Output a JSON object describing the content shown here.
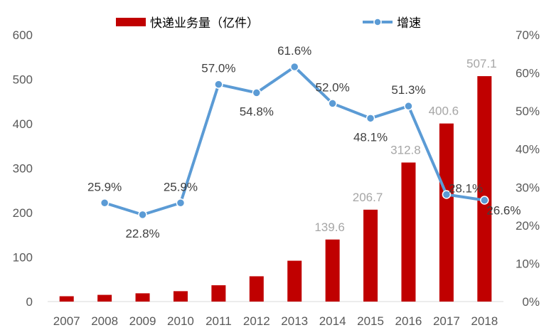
{
  "chart_data": {
    "type": "bar",
    "categories": [
      "2007",
      "2008",
      "2009",
      "2010",
      "2011",
      "2012",
      "2013",
      "2014",
      "2015",
      "2016",
      "2017",
      "2018"
    ],
    "series": [
      {
        "name": "快递业务量（亿件）",
        "type": "bar",
        "axis": "left",
        "values": [
          12.0,
          15.1,
          18.6,
          23.4,
          36.7,
          56.9,
          91.9,
          139.6,
          206.7,
          312.8,
          400.6,
          507.1
        ],
        "labels": [
          null,
          null,
          null,
          null,
          null,
          null,
          null,
          "139.6",
          "206.7",
          "312.8",
          "400.6",
          "507.1"
        ]
      },
      {
        "name": "增速",
        "type": "line",
        "axis": "right",
        "values": [
          null,
          25.9,
          22.8,
          25.9,
          57.0,
          54.8,
          61.6,
          52.0,
          48.1,
          51.3,
          28.1,
          26.6
        ],
        "labels": [
          null,
          "25.9%",
          "22.8%",
          "25.9%",
          "57.0%",
          "54.8%",
          "61.6%",
          "52.0%",
          "48.1%",
          "51.3%",
          "28.1%",
          "26.6%"
        ]
      }
    ],
    "y_left": {
      "ylim": [
        0,
        600
      ],
      "ticks": [
        "0",
        "100",
        "200",
        "300",
        "400",
        "500",
        "600"
      ]
    },
    "y_right": {
      "ylim": [
        0,
        70
      ],
      "ticks": [
        "0%",
        "10%",
        "20%",
        "30%",
        "40%",
        "50%",
        "60%",
        "70%"
      ]
    },
    "title": "",
    "xlabel": "",
    "ylabel": "",
    "grid": false,
    "legend_placement": "top-center",
    "colors": {
      "bar": "#c00000",
      "line": "#5b9bd5",
      "marker_fill": "#5b9bd5",
      "marker_stroke": "#ffffff",
      "tick_text": "#595959",
      "bar_label": "#a6a6a6",
      "line_label": "#404040",
      "axis": "#d9d9d9"
    }
  }
}
